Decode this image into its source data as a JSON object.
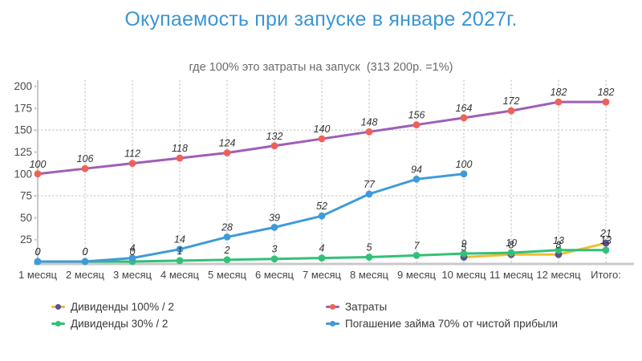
{
  "header": {
    "title": "Окупаемость при запуске в январе 2027г.",
    "subtitle": "где 100% это затраты на запуск  (313 200р. =1%)",
    "title_color": "#3b96d2"
  },
  "chart_data": {
    "type": "line",
    "title": "Окупаемость при запуске в январе 2027г.",
    "subtitle": "где 100% это затраты на запуск  (313 200р. =1%)",
    "categories": [
      "1 месяц",
      "2 месяц",
      "3 месяц",
      "4 месяц",
      "5 месяц",
      "6 месяц",
      "7 месяц",
      "8 месяц",
      "9 месяц",
      "10 месяц",
      "11 месяц",
      "12 месяц",
      "Итого:"
    ],
    "ylim": [
      0,
      200
    ],
    "y_ticks": [
      25,
      50,
      75,
      100,
      125,
      150,
      175,
      200
    ],
    "h_gridlines": [
      75,
      150
    ],
    "grid": "vertical dotted per month, horizontal dotted at 75 and 150",
    "legend_position": "bottom",
    "data_labels": true,
    "series": [
      {
        "name": "Дивиденды 100% / 2",
        "line_color": "#f2bd33",
        "marker_color": "#5e4f90",
        "values": [
          null,
          null,
          null,
          null,
          null,
          null,
          null,
          null,
          null,
          5,
          8,
          8,
          21
        ]
      },
      {
        "name": "Дивиденды 30% / 2",
        "line_color": "#33c077",
        "marker_color": "#33c077",
        "values": [
          0,
          0,
          0,
          1,
          2,
          3,
          4,
          5,
          7,
          9,
          10,
          13,
          13
        ]
      },
      {
        "name": "Затраты",
        "line_color": "#9d5fb9",
        "marker_color": "#ef6155",
        "values": [
          100,
          106,
          112,
          118,
          124,
          132,
          140,
          148,
          156,
          164,
          172,
          182,
          182
        ]
      },
      {
        "name": "Погашение займа 70% от чистой прибыли",
        "line_color": "#3f9bd8",
        "marker_color": "#3f9bd8",
        "values": [
          0,
          0,
          4,
          14,
          28,
          39,
          52,
          77,
          94,
          100,
          null,
          null,
          null
        ]
      }
    ],
    "label_style": {
      "color": "#333333",
      "italic": true
    },
    "axis_colors": {
      "axis_line": "#b0b0b0",
      "baseline": "#c9c9c9",
      "grid": "#c9c9c9",
      "tick_text": "#4a4a4a"
    }
  },
  "legend": {
    "columns": [
      {
        "items": [
          {
            "series": 0
          },
          {
            "series": 1
          }
        ]
      },
      {
        "items": [
          {
            "series": 2
          },
          {
            "series": 3
          }
        ]
      }
    ]
  }
}
